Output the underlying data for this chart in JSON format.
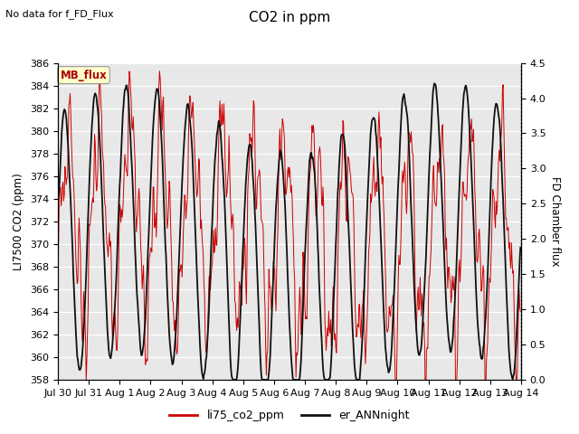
{
  "title": "CO2 in ppm",
  "top_left_text": "No data for f_FD_Flux",
  "ylabel_left": "LI7500 CO2 (ppm)",
  "ylabel_right": "FD Chamber flux",
  "ylim_left": [
    358,
    386
  ],
  "ylim_right": [
    0.0,
    4.5
  ],
  "yticks_left": [
    358,
    360,
    362,
    364,
    366,
    368,
    370,
    372,
    374,
    376,
    378,
    380,
    382,
    384,
    386
  ],
  "yticks_right": [
    0.0,
    0.5,
    1.0,
    1.5,
    2.0,
    2.5,
    3.0,
    3.5,
    4.0,
    4.5
  ],
  "xtick_labels": [
    "Jul 30",
    "Jul 31",
    "Aug 1",
    "Aug 2",
    "Aug 3",
    "Aug 4",
    "Aug 5",
    "Aug 6",
    "Aug 7",
    "Aug 8",
    "Aug 9",
    "Aug 10",
    "Aug 11",
    "Aug 12",
    "Aug 13",
    "Aug 14"
  ],
  "legend_label_red": "li75_co2_ppm",
  "legend_label_black": "er_ANNnight",
  "mb_flux_label": "MB_flux",
  "fig_bg_color": "#ffffff",
  "plot_bg_color": "#e8e8e8",
  "red_color": "#cc0000",
  "black_color": "#111111",
  "grid_color": "#ffffff",
  "mb_flux_box_color": "#ffffcc",
  "mb_flux_text_color": "#aa0000"
}
